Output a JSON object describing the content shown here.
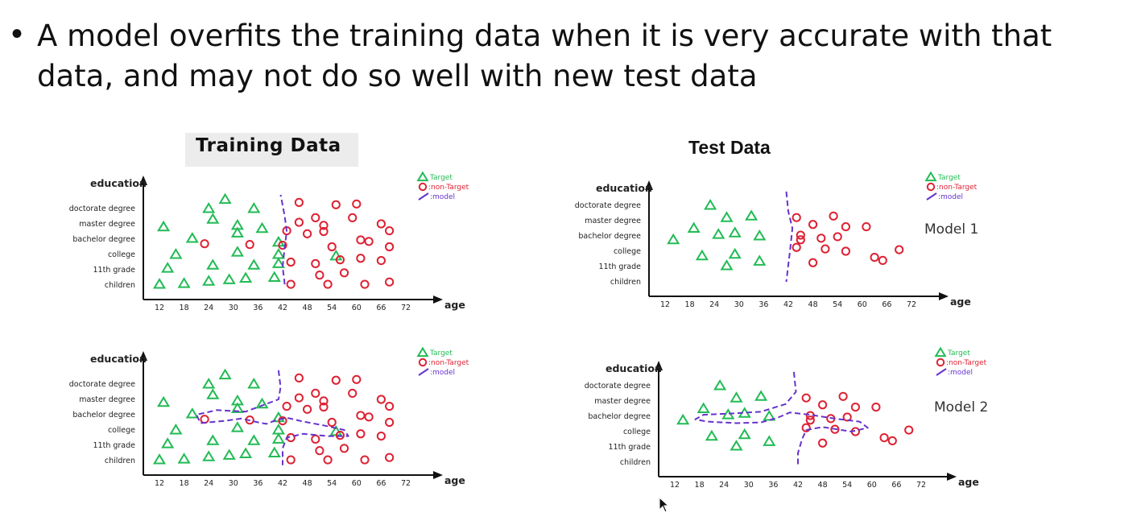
{
  "slide": {
    "bullet_glyph": "•",
    "bullet_text": "A model overfits the training data when it is very accurate with that data, and may not do so well with new test data",
    "training_title": "Training Data",
    "test_title": "Test Data"
  },
  "chart_data": [
    {
      "id": "train-model1",
      "type": "scatter",
      "ylabel": "education",
      "xlabel": "age",
      "xticks": [
        12,
        18,
        24,
        30,
        36,
        42,
        48,
        54,
        60,
        66,
        72
      ],
      "yticks": [
        "children",
        "11th grade",
        "college",
        "bachelor degree",
        "master degree",
        "doctorate degree"
      ],
      "legend": [
        "Target",
        "non-Target",
        "model"
      ],
      "legend_position": "top-right",
      "model_label": "",
      "series": [
        {
          "name": "Target",
          "marker": "triangle",
          "color": "#22bb55",
          "points": [
            [
              12,
              0.05
            ],
            [
              18,
              0.1
            ],
            [
              24,
              0.25
            ],
            [
              29,
              0.35
            ],
            [
              33,
              0.45
            ],
            [
              40,
              0.5
            ],
            [
              14,
              1.1
            ],
            [
              25,
              1.3
            ],
            [
              35,
              1.3
            ],
            [
              41,
              1.4
            ],
            [
              55,
              1.9
            ],
            [
              31,
              2.15
            ],
            [
              41,
              2.0
            ],
            [
              16,
              2.0
            ],
            [
              20,
              3.05
            ],
            [
              31,
              3.4
            ],
            [
              37,
              3.7
            ],
            [
              41,
              2.8
            ],
            [
              13,
              3.8
            ],
            [
              25,
              4.3
            ],
            [
              31,
              3.9
            ],
            [
              24,
              5.0
            ],
            [
              28,
              5.6
            ],
            [
              35,
              5.0
            ]
          ]
        },
        {
          "name": "non-Target",
          "marker": "circle",
          "color": "#dd2233",
          "points": [
            [
              44,
              0.05
            ],
            [
              53,
              0.05
            ],
            [
              62,
              0.05
            ],
            [
              68,
              0.2
            ],
            [
              51,
              0.65
            ],
            [
              57,
              0.8
            ],
            [
              44,
              1.5
            ],
            [
              50,
              1.4
            ],
            [
              56,
              1.65
            ],
            [
              61,
              1.75
            ],
            [
              66,
              1.6
            ],
            [
              42,
              2.6
            ],
            [
              54,
              2.5
            ],
            [
              63,
              2.85
            ],
            [
              68,
              2.5
            ],
            [
              23,
              2.7
            ],
            [
              34,
              2.65
            ],
            [
              48,
              3.35
            ],
            [
              52,
              3.5
            ],
            [
              61,
              2.95
            ],
            [
              43,
              3.55
            ],
            [
              52,
              3.9
            ],
            [
              68,
              3.55
            ],
            [
              46,
              4.1
            ],
            [
              50,
              4.4
            ],
            [
              59,
              4.4
            ],
            [
              66,
              4.0
            ],
            [
              46,
              5.4
            ],
            [
              55,
              5.25
            ],
            [
              60,
              5.3
            ]
          ]
        },
        {
          "name": "model",
          "type": "line",
          "style": "dashed",
          "color": "#6633cc",
          "points": [
            [
              42.5,
              0.05
            ],
            [
              42,
              1.2
            ],
            [
              42.5,
              2.5
            ],
            [
              43,
              3.5
            ],
            [
              42.5,
              4.5
            ],
            [
              41.5,
              5.9
            ]
          ]
        }
      ]
    },
    {
      "id": "test-model1",
      "type": "scatter",
      "ylabel": "education",
      "xlabel": "age",
      "xticks": [
        12,
        18,
        24,
        30,
        36,
        42,
        48,
        54,
        60,
        66,
        72
      ],
      "yticks": [
        "children",
        "11th grade",
        "college",
        "bachelor degree",
        "master degree",
        "doctorate degree"
      ],
      "legend": [
        "Target",
        "non-Target",
        "model"
      ],
      "legend_position": "top-right",
      "model_label": "Model 1",
      "series": [
        {
          "name": "Target",
          "marker": "triangle",
          "color": "#22bb55",
          "points": [
            [
              23,
              5.0
            ],
            [
              27,
              4.2
            ],
            [
              33,
              4.3
            ],
            [
              19,
              3.5
            ],
            [
              25,
              3.1
            ],
            [
              29,
              3.2
            ],
            [
              35,
              3.0
            ],
            [
              14,
              2.75
            ],
            [
              21,
              1.7
            ],
            [
              29,
              1.8
            ],
            [
              27,
              1.05
            ],
            [
              35,
              1.35
            ]
          ]
        },
        {
          "name": "non-Target",
          "marker": "circle",
          "color": "#dd2233",
          "points": [
            [
              44,
              4.2
            ],
            [
              53,
              4.3
            ],
            [
              48,
              3.75
            ],
            [
              56,
              3.6
            ],
            [
              61,
              3.6
            ],
            [
              45,
              3.05
            ],
            [
              50,
              2.85
            ],
            [
              54,
              2.95
            ],
            [
              45,
              2.75
            ],
            [
              44,
              2.25
            ],
            [
              51,
              2.15
            ],
            [
              56,
              2.0
            ],
            [
              63,
              1.6
            ],
            [
              69,
              2.1
            ],
            [
              48,
              1.25
            ],
            [
              65,
              1.4
            ]
          ]
        },
        {
          "name": "model",
          "type": "line",
          "style": "dashed",
          "color": "#6633cc",
          "points": [
            [
              41.5,
              5.9
            ],
            [
              42,
              4.6
            ],
            [
              43,
              3.5
            ],
            [
              42.5,
              2.2
            ],
            [
              41.5,
              0.0
            ]
          ]
        }
      ]
    },
    {
      "id": "train-model2",
      "type": "scatter",
      "ylabel": "education",
      "xlabel": "age",
      "xticks": [
        12,
        18,
        24,
        30,
        36,
        42,
        48,
        54,
        60,
        66,
        72
      ],
      "yticks": [
        "children",
        "11th grade",
        "college",
        "bachelor degree",
        "master degree",
        "doctorate degree"
      ],
      "legend": [
        "Target",
        "non-Target",
        "model"
      ],
      "legend_position": "top-right",
      "model_label": "",
      "series": [
        {
          "name": "Target",
          "marker": "triangle",
          "color": "#22bb55",
          "points": [
            [
              12,
              0.05
            ],
            [
              18,
              0.1
            ],
            [
              24,
              0.25
            ],
            [
              29,
              0.35
            ],
            [
              33,
              0.45
            ],
            [
              40,
              0.5
            ],
            [
              14,
              1.1
            ],
            [
              25,
              1.3
            ],
            [
              35,
              1.3
            ],
            [
              41,
              1.4
            ],
            [
              55,
              1.9
            ],
            [
              31,
              2.15
            ],
            [
              41,
              2.0
            ],
            [
              16,
              2.0
            ],
            [
              20,
              3.05
            ],
            [
              31,
              3.4
            ],
            [
              37,
              3.7
            ],
            [
              41,
              2.8
            ],
            [
              13,
              3.8
            ],
            [
              25,
              4.3
            ],
            [
              31,
              3.9
            ],
            [
              24,
              5.0
            ],
            [
              28,
              5.6
            ],
            [
              35,
              5.0
            ]
          ]
        },
        {
          "name": "non-Target",
          "marker": "circle",
          "color": "#dd2233",
          "points": [
            [
              44,
              0.05
            ],
            [
              53,
              0.05
            ],
            [
              62,
              0.05
            ],
            [
              68,
              0.2
            ],
            [
              51,
              0.65
            ],
            [
              57,
              0.8
            ],
            [
              44,
              1.5
            ],
            [
              50,
              1.4
            ],
            [
              56,
              1.65
            ],
            [
              61,
              1.75
            ],
            [
              66,
              1.6
            ],
            [
              42,
              2.6
            ],
            [
              54,
              2.5
            ],
            [
              63,
              2.85
            ],
            [
              68,
              2.5
            ],
            [
              23,
              2.7
            ],
            [
              34,
              2.65
            ],
            [
              48,
              3.35
            ],
            [
              52,
              3.5
            ],
            [
              61,
              2.95
            ],
            [
              43,
              3.55
            ],
            [
              52,
              3.9
            ],
            [
              68,
              3.55
            ],
            [
              46,
              4.1
            ],
            [
              50,
              4.4
            ],
            [
              59,
              4.4
            ],
            [
              66,
              4.0
            ],
            [
              46,
              5.4
            ],
            [
              55,
              5.25
            ],
            [
              60,
              5.3
            ]
          ]
        },
        {
          "name": "model",
          "type": "line",
          "style": "dashed",
          "color": "#6633cc",
          "points": [
            [
              41,
              5.9
            ],
            [
              41.5,
              4.8
            ],
            [
              41,
              4.0
            ],
            [
              33,
              3.2
            ],
            [
              26,
              3.3
            ],
            [
              21,
              3.0
            ],
            [
              22,
              2.45
            ],
            [
              28,
              2.6
            ],
            [
              32,
              2.75
            ],
            [
              36,
              2.5
            ],
            [
              38,
              2.4
            ],
            [
              40,
              2.6
            ],
            [
              43,
              2.8
            ],
            [
              47,
              2.55
            ],
            [
              52,
              2.3
            ],
            [
              57,
              2.0
            ],
            [
              58,
              1.6
            ],
            [
              53,
              1.6
            ],
            [
              47,
              1.75
            ],
            [
              43,
              1.5
            ],
            [
              42,
              0.8
            ],
            [
              42,
              -0.3
            ]
          ]
        }
      ]
    },
    {
      "id": "test-model2",
      "type": "scatter",
      "ylabel": "education",
      "xlabel": "age",
      "xticks": [
        12,
        18,
        24,
        30,
        36,
        42,
        48,
        54,
        60,
        66,
        72
      ],
      "yticks": [
        "children",
        "11th grade",
        "college",
        "bachelor degree",
        "master degree",
        "doctorate degree"
      ],
      "legend": [
        "Target",
        "non-Target",
        "model"
      ],
      "legend_position": "top-right",
      "model_label": "Model 2",
      "series": [
        {
          "name": "Target",
          "marker": "triangle",
          "color": "#22bb55",
          "points": [
            [
              23,
              5.0
            ],
            [
              27,
              4.2
            ],
            [
              33,
              4.3
            ],
            [
              19,
              3.5
            ],
            [
              25,
              3.1
            ],
            [
              29,
              3.2
            ],
            [
              35,
              3.0
            ],
            [
              14,
              2.75
            ],
            [
              21,
              1.7
            ],
            [
              29,
              1.8
            ],
            [
              27,
              1.05
            ],
            [
              35,
              1.35
            ]
          ]
        },
        {
          "name": "non-Target",
          "marker": "circle",
          "color": "#dd2233",
          "points": [
            [
              44,
              4.2
            ],
            [
              53,
              4.3
            ],
            [
              48,
              3.75
            ],
            [
              56,
              3.6
            ],
            [
              61,
              3.6
            ],
            [
              45,
              3.05
            ],
            [
              50,
              2.85
            ],
            [
              54,
              2.95
            ],
            [
              45,
              2.75
            ],
            [
              44,
              2.25
            ],
            [
              51,
              2.15
            ],
            [
              56,
              2.0
            ],
            [
              63,
              1.6
            ],
            [
              69,
              2.1
            ],
            [
              48,
              1.25
            ],
            [
              65,
              1.4
            ]
          ]
        },
        {
          "name": "model",
          "type": "line",
          "style": "dashed",
          "color": "#6633cc",
          "points": [
            [
              41,
              5.9
            ],
            [
              41.5,
              4.6
            ],
            [
              39,
              3.8
            ],
            [
              33,
              3.3
            ],
            [
              27,
              3.2
            ],
            [
              19,
              3.1
            ],
            [
              17,
              2.8
            ],
            [
              20,
              2.65
            ],
            [
              27,
              2.55
            ],
            [
              33,
              2.6
            ],
            [
              37,
              2.9
            ],
            [
              40,
              3.25
            ],
            [
              45,
              3.1
            ],
            [
              51,
              2.85
            ],
            [
              57,
              2.65
            ],
            [
              59,
              2.25
            ],
            [
              55,
              2.0
            ],
            [
              48,
              2.3
            ],
            [
              44,
              2.1
            ],
            [
              43,
              1.5
            ],
            [
              42,
              0.6
            ],
            [
              42,
              -0.3
            ]
          ]
        }
      ]
    }
  ]
}
